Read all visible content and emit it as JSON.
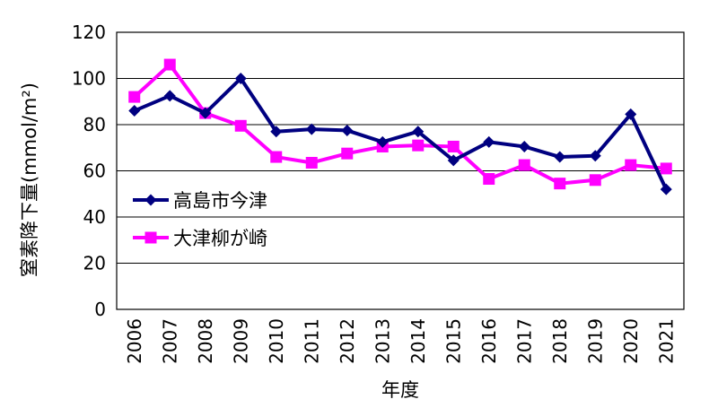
{
  "chart_data": {
    "type": "line",
    "x": [
      "2006",
      "2007",
      "2008",
      "2009",
      "2010",
      "2011",
      "2012",
      "2013",
      "2014",
      "2015",
      "2016",
      "2017",
      "2018",
      "2019",
      "2020",
      "2021"
    ],
    "xlabel": "年度",
    "ylabel": "窒素降下量(mmol/m²)",
    "ylim": [
      0,
      120
    ],
    "yticks": [
      0,
      20,
      40,
      60,
      80,
      100,
      120
    ],
    "grid": true,
    "legend_position": "center-left",
    "series": [
      {
        "name": "高島市今津",
        "color": "#000080",
        "marker": "diamond",
        "values": [
          86,
          92.5,
          85,
          100,
          77,
          78,
          77.5,
          72.5,
          77,
          64.5,
          72.5,
          70.5,
          66,
          66.5,
          84.5,
          52
        ]
      },
      {
        "name": "大津柳が崎",
        "color": "#ff00ff",
        "marker": "square",
        "values": [
          92,
          106,
          85,
          79.5,
          66,
          63.5,
          67.5,
          70.5,
          71,
          70.5,
          56.5,
          62.5,
          54.5,
          56,
          62.5,
          61
        ]
      }
    ]
  }
}
